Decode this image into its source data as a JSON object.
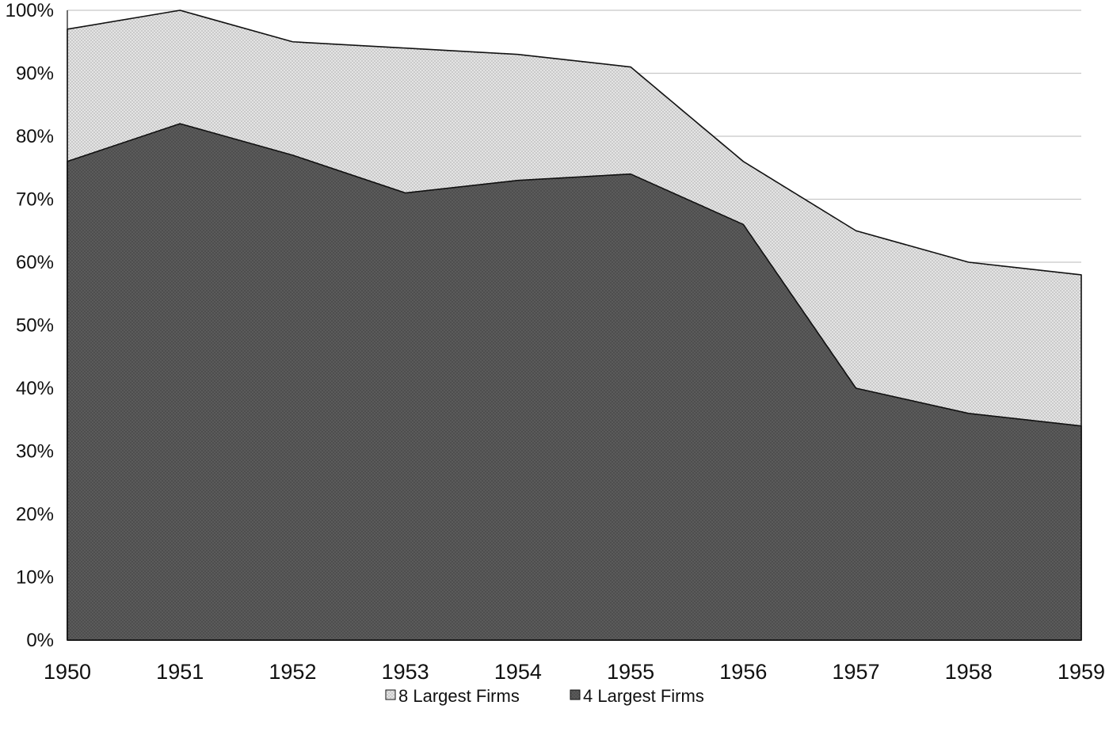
{
  "chart_data": {
    "type": "area",
    "stacking": "overlay",
    "x": [
      "1950",
      "1951",
      "1952",
      "1953",
      "1954",
      "1955",
      "1956",
      "1957",
      "1958",
      "1959"
    ],
    "series": [
      {
        "name": "8 Largest Firms",
        "values": [
          97,
          100,
          95,
          94,
          93,
          91,
          76,
          65,
          60,
          58
        ],
        "fill": "#dcdcdc",
        "pattern": "dotted-light"
      },
      {
        "name": "4 Largest Firms",
        "values": [
          76,
          82,
          77,
          71,
          73,
          74,
          66,
          40,
          36,
          34
        ],
        "fill": "#555555",
        "pattern": "dotted-dark"
      }
    ],
    "ylim": [
      0,
      100
    ],
    "y_ticks": [
      "0%",
      "10%",
      "20%",
      "30%",
      "40%",
      "50%",
      "60%",
      "70%",
      "80%",
      "90%",
      "100%"
    ],
    "grid": "horizontal",
    "legend": "bottom-center",
    "title": "",
    "xlabel": "",
    "ylabel": ""
  }
}
